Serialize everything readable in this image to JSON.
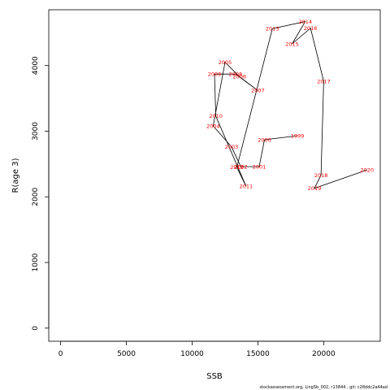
{
  "chart_data": {
    "type": "line",
    "xlabel": "SSB",
    "ylabel": "R(age 3)",
    "xlim": [
      -900,
      24300
    ],
    "ylim": [
      -200,
      4850
    ],
    "x_ticks": [
      0,
      5000,
      10000,
      15000,
      20000
    ],
    "y_ticks": [
      0,
      1000,
      2000,
      3000,
      4000
    ],
    "grid": false,
    "line_color": "#000000",
    "label_color": "#ff0000",
    "points": [
      {
        "year": "1999",
        "x": 18000,
        "y": 2930
      },
      {
        "year": "2000",
        "x": 15500,
        "y": 2870
      },
      {
        "year": "2001",
        "x": 15100,
        "y": 2460
      },
      {
        "year": "2002",
        "x": 13700,
        "y": 2460
      },
      {
        "year": "2003",
        "x": 13000,
        "y": 2760
      },
      {
        "year": "2004",
        "x": 11600,
        "y": 3080
      },
      {
        "year": "2005",
        "x": 12500,
        "y": 4050
      },
      {
        "year": "2006",
        "x": 13600,
        "y": 3830
      },
      {
        "year": "2007",
        "x": 15000,
        "y": 3620
      },
      {
        "year": "2008",
        "x": 13300,
        "y": 3870
      },
      {
        "year": "2009",
        "x": 11700,
        "y": 3870
      },
      {
        "year": "2010",
        "x": 11800,
        "y": 3230
      },
      {
        "year": "2011",
        "x": 14100,
        "y": 2160
      },
      {
        "year": "2012",
        "x": 13400,
        "y": 2450
      },
      {
        "year": "2013",
        "x": 16100,
        "y": 4560
      },
      {
        "year": "2014",
        "x": 18600,
        "y": 4670
      },
      {
        "year": "2015",
        "x": 17600,
        "y": 4330
      },
      {
        "year": "2016",
        "x": 19000,
        "y": 4570
      },
      {
        "year": "2017",
        "x": 20000,
        "y": 3760
      },
      {
        "year": "2018",
        "x": 19800,
        "y": 2330
      },
      {
        "year": "2019",
        "x": 19300,
        "y": 2130
      },
      {
        "year": "2020",
        "x": 23300,
        "y": 2410
      }
    ]
  },
  "footer": "stockassessment.org, LingSb_002, r13844 , git: c28ddc2a44ad"
}
